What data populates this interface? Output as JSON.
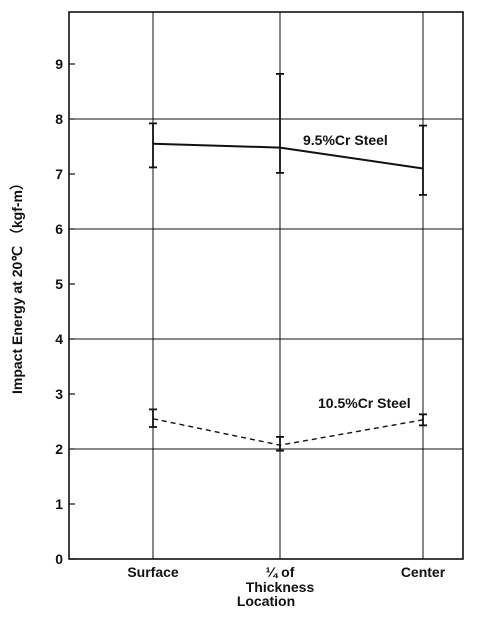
{
  "chart_data": {
    "type": "line",
    "xlabel": "Location",
    "ylabel": "Impact Energy at 20℃ （kgf-m）",
    "ylim": [
      0,
      10
    ],
    "yticks": [
      "0",
      "1",
      "2",
      "3",
      "4",
      "5",
      "6",
      "7",
      "8",
      "9"
    ],
    "categories": [
      {
        "line1": "Surface",
        "line2": ""
      },
      {
        "line1": "¼ of",
        "line2": "Thickness"
      },
      {
        "line1": "Center",
        "line2": ""
      }
    ],
    "grid": {
      "horizontal": [
        2,
        4,
        6,
        8
      ],
      "vertical": true
    },
    "series": [
      {
        "name": "9.5%Cr Steel",
        "style": "solid",
        "values": [
          7.55,
          7.48,
          7.1
        ],
        "error_low": [
          7.12,
          7.02,
          6.62
        ],
        "error_high": [
          7.92,
          8.82,
          7.88
        ]
      },
      {
        "name": "10.5%Cr Steel",
        "style": "dashed",
        "values": [
          2.55,
          2.07,
          2.53
        ],
        "error_low": [
          2.4,
          1.97,
          2.43
        ],
        "error_high": [
          2.72,
          2.22,
          2.63
        ]
      }
    ]
  }
}
